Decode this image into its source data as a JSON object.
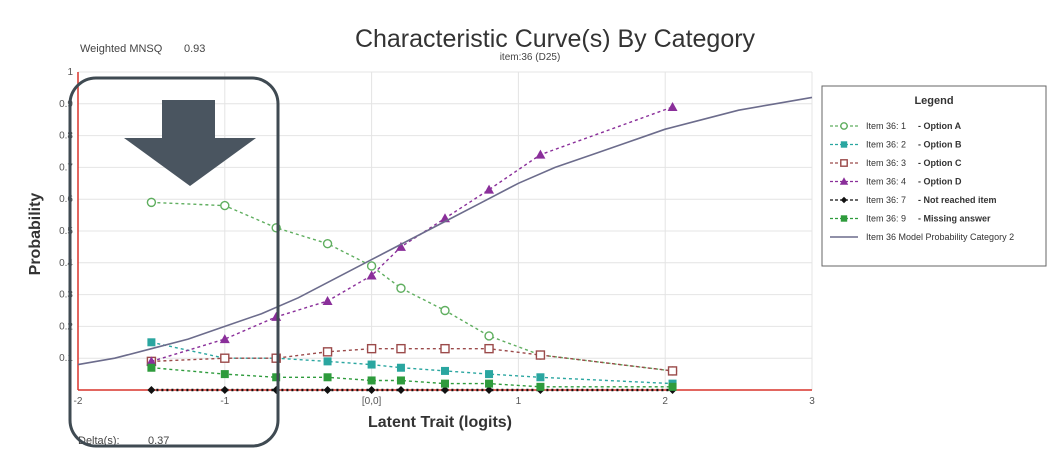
{
  "header": {
    "weighted_mnsq_label": "Weighted MNSQ",
    "weighted_mnsq_value": "0.93",
    "delta_label": "Delta(s):",
    "delta_value": "0.37"
  },
  "chart_data": {
    "type": "line",
    "title": "Characteristic Curve(s) By Category",
    "subtitle": "item:36 (D25)",
    "xlabel": "Latent Trait (logits)",
    "ylabel": "Probability",
    "xlim": [
      -2,
      3
    ],
    "ylim": [
      0,
      1
    ],
    "x_ticks": [
      "-2",
      "-1",
      "[0,0]",
      "1",
      "2",
      "3"
    ],
    "y_ticks": [
      "0.1",
      "0.2",
      "0.3",
      "0.4",
      "0.5",
      "0.6",
      "0.7",
      "0.8",
      "0.9",
      "1"
    ],
    "grid": true,
    "legend": {
      "title": "Legend",
      "position": "right",
      "entries": [
        {
          "item": "Item 36: 1",
          "label": "- Option A"
        },
        {
          "item": "Item 36: 2",
          "label": "- Option B"
        },
        {
          "item": "Item 36: 3",
          "label": "- Option C"
        },
        {
          "item": "Item 36: 4",
          "label": "- Option D"
        },
        {
          "item": "Item 36: 7",
          "label": "- Not reached item"
        },
        {
          "item": "Item 36: 9",
          "label": "- Missing answer"
        },
        {
          "item": "",
          "label": "Item 36 Model Probability Category 2"
        }
      ]
    },
    "series": [
      {
        "marker": "circle-open",
        "color": "#5fae5f",
        "x": [
          -1.5,
          -1.0,
          -0.65,
          -0.3,
          0.0,
          0.2,
          0.5,
          0.8,
          1.15,
          2.05
        ],
        "y": [
          0.59,
          0.58,
          0.51,
          0.46,
          0.39,
          0.32,
          0.25,
          0.17,
          0.11,
          0.06
        ]
      },
      {
        "marker": "square-filled",
        "color": "#2aa6a0",
        "x": [
          -1.5,
          -1.0,
          -0.65,
          -0.3,
          0.0,
          0.2,
          0.5,
          0.8,
          1.15,
          2.05
        ],
        "y": [
          0.15,
          0.1,
          0.1,
          0.09,
          0.08,
          0.07,
          0.06,
          0.05,
          0.04,
          0.02
        ]
      },
      {
        "marker": "square-open",
        "color": "#9b4a4a",
        "x": [
          -1.5,
          -1.0,
          -0.65,
          -0.3,
          0.0,
          0.2,
          0.5,
          0.8,
          1.15,
          2.05
        ],
        "y": [
          0.09,
          0.1,
          0.1,
          0.12,
          0.13,
          0.13,
          0.13,
          0.13,
          0.11,
          0.06
        ]
      },
      {
        "marker": "triangle-filled",
        "color": "#8a2f9a",
        "x": [
          -1.5,
          -1.0,
          -0.65,
          -0.3,
          0.0,
          0.2,
          0.5,
          0.8,
          1.15,
          2.05
        ],
        "y": [
          0.09,
          0.16,
          0.23,
          0.28,
          0.36,
          0.45,
          0.54,
          0.63,
          0.74,
          0.89
        ]
      },
      {
        "marker": "diamond-filled",
        "color": "#111111",
        "x": [
          -1.5,
          -1.0,
          -0.65,
          -0.3,
          0.0,
          0.2,
          0.5,
          0.8,
          1.15,
          2.05
        ],
        "y": [
          0.0,
          0.0,
          0.0,
          0.0,
          0.0,
          0.0,
          0.0,
          0.0,
          0.0,
          0.0
        ]
      },
      {
        "marker": "square-filled",
        "color": "#2e9b3c",
        "x": [
          -1.5,
          -1.0,
          -0.65,
          -0.3,
          0.0,
          0.2,
          0.5,
          0.8,
          1.15,
          2.05
        ],
        "y": [
          0.07,
          0.05,
          0.04,
          0.04,
          0.03,
          0.03,
          0.02,
          0.02,
          0.01,
          0.01
        ]
      },
      {
        "marker": "none",
        "color": "#6c6c8c",
        "x": [
          -2.0,
          -1.75,
          -1.5,
          -1.25,
          -1.0,
          -0.75,
          -0.5,
          -0.25,
          0.0,
          0.25,
          0.5,
          0.75,
          1.0,
          1.25,
          1.5,
          1.75,
          2.0,
          2.25,
          2.5,
          2.75,
          3.0
        ],
        "y": [
          0.08,
          0.1,
          0.13,
          0.16,
          0.2,
          0.24,
          0.29,
          0.35,
          0.41,
          0.47,
          0.53,
          0.59,
          0.65,
          0.7,
          0.74,
          0.78,
          0.82,
          0.85,
          0.88,
          0.9,
          0.92
        ]
      }
    ]
  }
}
